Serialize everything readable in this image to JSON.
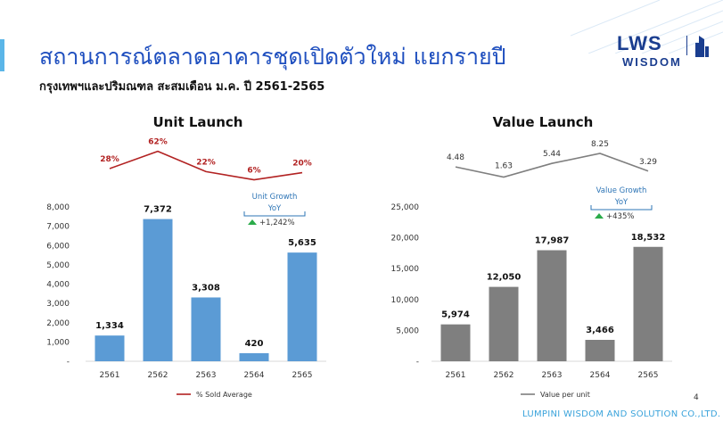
{
  "header": {
    "title": "สถานการณ์ตลาดอาคารชุดเปิดตัวใหม่ แยกรายปี",
    "subtitle": "กรุงเทพฯและปริมณฑล สะสมเดือน ม.ค. ปี 2561-2565"
  },
  "logo": {
    "main": "LWS",
    "sub": "WISDOM"
  },
  "footer": {
    "company": "LUMPINI WISDOM AND SOLUTION CO.,LTD.",
    "page": "4"
  },
  "colors": {
    "unit_bar": "#5b9bd5",
    "value_bar": "#7f7f7f",
    "sold_line": "#b22222",
    "unit_line": "#7f7f7f",
    "accent": "#1f4fbf",
    "growth_text": "#2e75b6",
    "up_arrow": "#2bab4a"
  },
  "chart_data": [
    {
      "type": "bar",
      "title": "Unit Launch",
      "categories": [
        "2561",
        "2562",
        "2563",
        "2564",
        "2565"
      ],
      "values": [
        1334,
        7372,
        3308,
        420,
        5635
      ],
      "value_labels": [
        "1,334",
        "7,372",
        "3,308",
        "420",
        "5,635"
      ],
      "ylim": [
        0,
        8000
      ],
      "yticks": [
        0,
        1000,
        2000,
        3000,
        4000,
        5000,
        6000,
        7000,
        8000
      ],
      "ytick_labels": [
        "-",
        "1,000",
        "2,000",
        "3,000",
        "4,000",
        "5,000",
        "6,000",
        "7,000",
        "8,000"
      ],
      "line": {
        "name": "% Sold Average",
        "values": [
          28,
          62,
          22,
          6,
          20
        ],
        "labels": [
          "28%",
          "62%",
          "22%",
          "6%",
          "20%"
        ],
        "ylim": [
          0,
          70
        ]
      },
      "growth": {
        "title": "Unit Growth",
        "period": "YoY",
        "value": "+1,242%"
      },
      "legend_position": "bottom"
    },
    {
      "type": "bar",
      "title": "Value Launch",
      "categories": [
        "2561",
        "2562",
        "2563",
        "2564",
        "2565"
      ],
      "values": [
        5974,
        12050,
        17987,
        3466,
        18532
      ],
      "value_labels": [
        "5,974",
        "12,050",
        "17,987",
        "3,466",
        "18,532"
      ],
      "ylim": [
        0,
        25000
      ],
      "yticks": [
        0,
        5000,
        10000,
        15000,
        20000,
        25000
      ],
      "ytick_labels": [
        "-",
        "5,000",
        "10,000",
        "15,000",
        "20,000",
        "25,000"
      ],
      "line": {
        "name": "Value per unit",
        "values": [
          4.48,
          1.63,
          5.44,
          8.25,
          3.29
        ],
        "labels": [
          "4.48",
          "1.63",
          "5.44",
          "8.25",
          "3.29"
        ],
        "ylim": [
          0,
          10
        ]
      },
      "growth": {
        "title": "Value Growth",
        "period": "YoY",
        "value": "+435%"
      },
      "legend_position": "bottom"
    }
  ]
}
